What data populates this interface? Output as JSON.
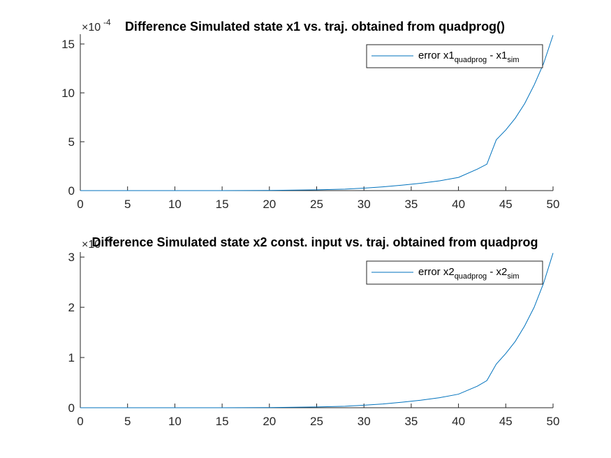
{
  "chart_data": [
    {
      "type": "line",
      "title": "Difference Simulated state x1 vs. traj. obtained from quadprog()",
      "exponent_base": "×10",
      "exponent_power": "-4",
      "xlim": [
        0,
        50
      ],
      "ylim": [
        0,
        16
      ],
      "x_ticks": [
        "0",
        "5",
        "10",
        "15",
        "20",
        "25",
        "30",
        "35",
        "40",
        "45",
        "50"
      ],
      "y_ticks": [
        "0",
        "5",
        "10",
        "15"
      ],
      "legend": {
        "prefix": "error x1",
        "sub1": "quadprog",
        "mid": " - x1",
        "sub2": "sim",
        "placement": "top-right"
      },
      "color": "#0072BD",
      "series": [
        {
          "x": [
            0,
            5,
            10,
            15,
            20,
            25,
            28,
            30,
            32,
            34,
            36,
            38,
            40,
            42,
            43,
            44,
            45,
            46,
            47,
            48,
            49,
            50
          ],
          "y": [
            0,
            0,
            0,
            0,
            0.02,
            0.08,
            0.15,
            0.25,
            0.38,
            0.55,
            0.75,
            1.0,
            1.35,
            2.2,
            2.7,
            5.2,
            6.2,
            7.4,
            8.9,
            10.8,
            13.0,
            15.9
          ]
        }
      ]
    },
    {
      "type": "line",
      "title": "Difference Simulated state x2 const. input vs. traj. obtained from quadprog",
      "exponent_base": "×10",
      "exponent_power": "-3",
      "xlim": [
        0,
        50
      ],
      "ylim": [
        0,
        3.1
      ],
      "x_ticks": [
        "0",
        "5",
        "10",
        "15",
        "20",
        "25",
        "30",
        "35",
        "40",
        "45",
        "50"
      ],
      "y_ticks": [
        "0",
        "1",
        "2",
        "3"
      ],
      "legend": {
        "prefix": "error x2",
        "sub1": "quadprog",
        "mid": " - x2",
        "sub2": "sim",
        "placement": "top-right"
      },
      "color": "#0072BD",
      "series": [
        {
          "x": [
            0,
            5,
            10,
            15,
            20,
            25,
            28,
            30,
            32,
            34,
            36,
            38,
            40,
            42,
            43,
            44,
            45,
            46,
            47,
            48,
            49,
            50
          ],
          "y": [
            0,
            0,
            0,
            0,
            0.004,
            0.016,
            0.03,
            0.05,
            0.075,
            0.11,
            0.15,
            0.2,
            0.27,
            0.43,
            0.54,
            0.87,
            1.08,
            1.32,
            1.63,
            2.0,
            2.48,
            3.08
          ]
        }
      ]
    }
  ]
}
